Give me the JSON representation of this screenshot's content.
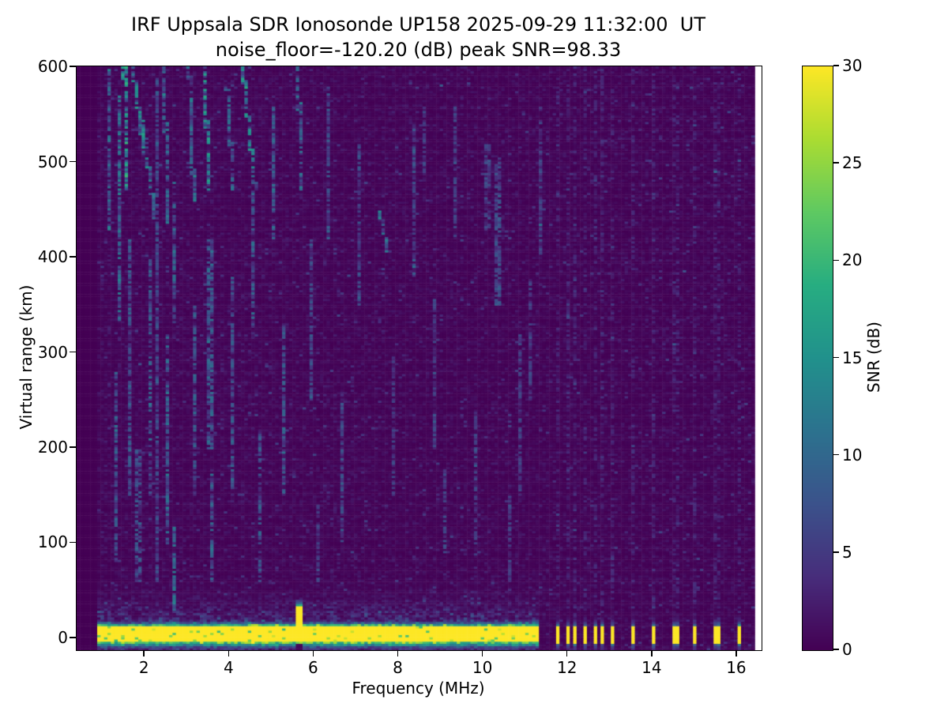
{
  "figure": {
    "title_line1": "IRF Uppsala SDR Ionosonde UP158 2025-09-29 11:32:00  UT",
    "title_line2": "noise_floor=-120.20 (dB) peak SNR=98.33",
    "background_color": "#ffffff",
    "station": "UP158",
    "timestamp": "2025-09-29 11:32:00 UT",
    "noise_floor_dB": -120.2,
    "peak_snr_dB": 98.33
  },
  "chart_data": {
    "type": "heatmap",
    "title": "IRF Uppsala SDR Ionosonde UP158 2025-09-29 11:32:00  UT",
    "subtitle": "noise_floor=-120.20 (dB) peak SNR=98.33",
    "xlabel": "Frequency (MHz)",
    "ylabel": "Virtual range (km)",
    "xlim": [
      0.39,
      16.58
    ],
    "ylim": [
      -12.5,
      601
    ],
    "x_ticks": [
      2,
      4,
      6,
      8,
      10,
      12,
      14,
      16
    ],
    "y_ticks": [
      0,
      100,
      200,
      300,
      400,
      500,
      600
    ],
    "grid": false,
    "colormap": "viridis",
    "viridis_stops": [
      "#440154",
      "#472d7b",
      "#3b528b",
      "#2c728e",
      "#21918c",
      "#27ad81",
      "#5ec962",
      "#aadc32",
      "#fde725"
    ],
    "colorbar": {
      "label": "SNR (dB)",
      "ticks": [
        0,
        5,
        10,
        15,
        20,
        25,
        30
      ],
      "vmin": 0,
      "vmax": 30,
      "position": "right"
    },
    "cells": {
      "n_freq": 200,
      "n_range": 264
    },
    "features": {
      "no_data_below_MHz": 0.88,
      "no_data_above_MHz": 16.45,
      "background_noise_mean_dB": 0.55,
      "ground_band": {
        "f_start_MHz": 0.88,
        "f_end_MHz": 11.3,
        "km_low": -4,
        "km_high": 12,
        "snr_dB": 30
      },
      "near_band_scatter_km_max": 65,
      "tx_bars_MHz": [
        11.76,
        11.98,
        12.2,
        12.41,
        12.63,
        12.85,
        13.07,
        13.53,
        14.05,
        14.56,
        15.03,
        15.53,
        16.06
      ],
      "spike": {
        "f_MHz": 5.65,
        "km_top": 38,
        "snr_dB": 30
      },
      "noise_streaks": [
        [
          1.18,
          430,
          598,
          9,
          0
        ],
        [
          1.3,
          80,
          280,
          7,
          0
        ],
        [
          1.38,
          330,
          570,
          10,
          0.05
        ],
        [
          1.52,
          470,
          600,
          14,
          0.08
        ],
        [
          1.62,
          150,
          420,
          7,
          0
        ],
        [
          1.72,
          500,
          600,
          12,
          0.3
        ],
        [
          1.85,
          60,
          200,
          7,
          0
        ],
        [
          1.95,
          440,
          545,
          11,
          0.3
        ],
        [
          2.1,
          150,
          400,
          8,
          0
        ],
        [
          2.32,
          60,
          590,
          6,
          0
        ],
        [
          2.45,
          430,
          600,
          9,
          0.12
        ],
        [
          2.56,
          100,
          320,
          9,
          0
        ],
        [
          2.7,
          330,
          480,
          8,
          0
        ],
        [
          2.72,
          30,
          120,
          9,
          0
        ],
        [
          3.05,
          460,
          600,
          10,
          0.12
        ],
        [
          3.18,
          150,
          350,
          7,
          0
        ],
        [
          3.42,
          470,
          600,
          13,
          0.1
        ],
        [
          3.55,
          200,
          420,
          8,
          0
        ],
        [
          3.62,
          60,
          180,
          8,
          0
        ],
        [
          3.95,
          470,
          580,
          9,
          0.15
        ],
        [
          4.1,
          150,
          380,
          7,
          0
        ],
        [
          4.32,
          470,
          600,
          12,
          0.3
        ],
        [
          4.55,
          320,
          470,
          8,
          0
        ],
        [
          4.75,
          60,
          220,
          7,
          0
        ],
        [
          5.05,
          420,
          560,
          8,
          0
        ],
        [
          5.3,
          150,
          330,
          7,
          0
        ],
        [
          5.62,
          470,
          600,
          9,
          0.1
        ],
        [
          5.95,
          250,
          420,
          6,
          0
        ],
        [
          6.1,
          60,
          140,
          5,
          0
        ],
        [
          6.35,
          420,
          580,
          7,
          0
        ],
        [
          6.65,
          100,
          260,
          6,
          0
        ],
        [
          7.05,
          350,
          520,
          6,
          0
        ],
        [
          7.55,
          405,
          450,
          10,
          0.22
        ],
        [
          7.9,
          150,
          300,
          5,
          0
        ],
        [
          8.35,
          380,
          540,
          6,
          0
        ],
        [
          8.6,
          480,
          560,
          5,
          0
        ],
        [
          8.85,
          200,
          360,
          5,
          0
        ],
        [
          9.1,
          90,
          180,
          5,
          0
        ],
        [
          9.35,
          420,
          560,
          5,
          0
        ],
        [
          9.85,
          100,
          240,
          5,
          0
        ],
        [
          10.1,
          430,
          520,
          5,
          0
        ],
        [
          10.35,
          350,
          500,
          6,
          0
        ],
        [
          10.6,
          60,
          150,
          5,
          0
        ],
        [
          10.85,
          150,
          320,
          5,
          0
        ],
        [
          11.1,
          250,
          380,
          5,
          0
        ],
        [
          11.35,
          400,
          560,
          5,
          0
        ]
      ]
    }
  }
}
